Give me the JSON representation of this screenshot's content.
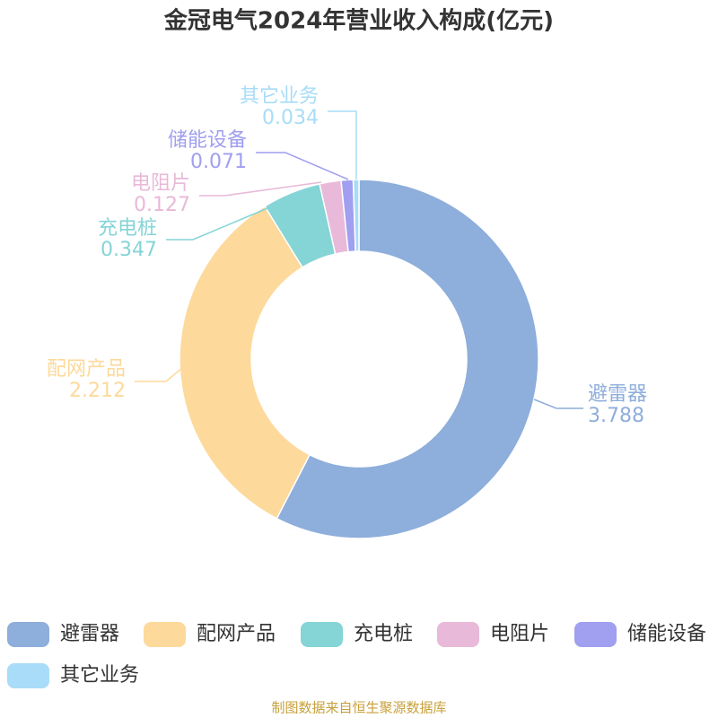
{
  "chart_data": {
    "type": "pie",
    "title": "金冠电气2024年营业收入构成(亿元)",
    "categories": [
      "避雷器",
      "配网产品",
      "充电桩",
      "电阻片",
      "储能设备",
      "其它业务"
    ],
    "values": [
      3.788,
      2.212,
      0.347,
      0.127,
      0.071,
      0.034
    ],
    "colors": [
      "#8eaedb",
      "#fdd99b",
      "#85d4d6",
      "#e8b9d8",
      "#a09ff0",
      "#a8dcf8"
    ],
    "legend": "bottom",
    "source": "制图数据来自恒生聚源数据库"
  }
}
